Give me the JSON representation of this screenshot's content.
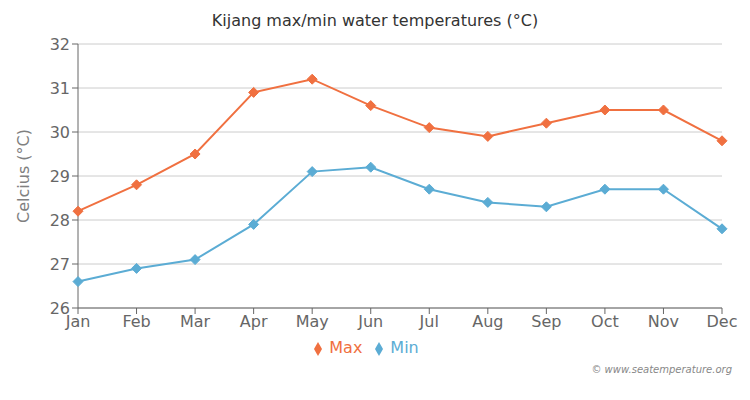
{
  "chart_data": {
    "type": "line",
    "title": "Kijang max/min water temperatures (°C)",
    "ylabel": "Celcius (°C)",
    "categories": [
      "Jan",
      "Feb",
      "Mar",
      "Apr",
      "May",
      "Jun",
      "Jul",
      "Aug",
      "Sep",
      "Oct",
      "Nov",
      "Dec"
    ],
    "series": [
      {
        "name": "Max",
        "color": "#f07040",
        "values": [
          28.2,
          28.8,
          29.5,
          30.9,
          31.2,
          30.6,
          30.1,
          29.9,
          30.2,
          30.5,
          30.5,
          29.8
        ]
      },
      {
        "name": "Min",
        "color": "#5bacd4",
        "values": [
          26.6,
          26.9,
          27.1,
          27.9,
          29.1,
          29.2,
          28.7,
          28.4,
          28.3,
          28.7,
          28.7,
          27.8
        ]
      }
    ],
    "ylim": [
      26,
      32
    ],
    "yticks": [
      26,
      27,
      28,
      29,
      30,
      31,
      32
    ],
    "grid": true,
    "legend": "bottom",
    "marker": "diamond",
    "annotation": "© www.seatemperature.org"
  }
}
